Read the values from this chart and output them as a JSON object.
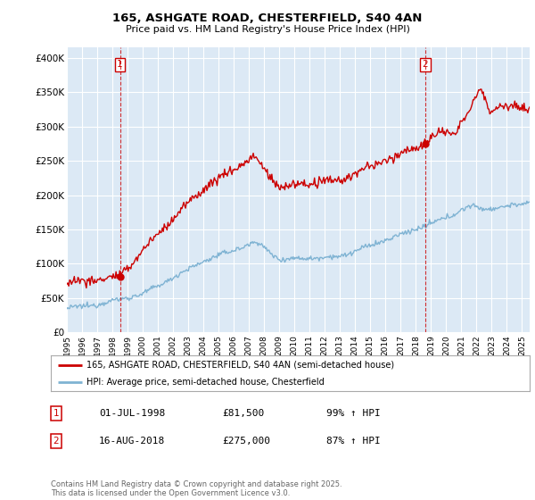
{
  "title": "165, ASHGATE ROAD, CHESTERFIELD, S40 4AN",
  "subtitle": "Price paid vs. HM Land Registry's House Price Index (HPI)",
  "ylabel_ticks": [
    "£0",
    "£50K",
    "£100K",
    "£150K",
    "£200K",
    "£250K",
    "£300K",
    "£350K",
    "£400K"
  ],
  "ytick_vals": [
    0,
    50000,
    100000,
    150000,
    200000,
    250000,
    300000,
    350000,
    400000
  ],
  "ylim": [
    0,
    415000
  ],
  "xlim_start": 1995.3,
  "xlim_end": 2025.5,
  "red_color": "#cc0000",
  "blue_color": "#7fb3d3",
  "bg_color": "#dce9f5",
  "grid_color": "#ffffff",
  "legend_label_red": "165, ASHGATE ROAD, CHESTERFIELD, S40 4AN (semi-detached house)",
  "legend_label_blue": "HPI: Average price, semi-detached house, Chesterfield",
  "purchase1_label": "1",
  "purchase1_date": "01-JUL-1998",
  "purchase1_price": "£81,500",
  "purchase1_hpi": "99% ↑ HPI",
  "purchase1_x": 1998.5,
  "purchase1_y": 81500,
  "purchase2_label": "2",
  "purchase2_date": "16-AUG-2018",
  "purchase2_price": "£275,000",
  "purchase2_hpi": "87% ↑ HPI",
  "purchase2_x": 2018.62,
  "purchase2_y": 275000,
  "footer": "Contains HM Land Registry data © Crown copyright and database right 2025.\nThis data is licensed under the Open Government Licence v3.0.",
  "xtick_years": [
    1995,
    1996,
    1997,
    1998,
    1999,
    2000,
    2001,
    2002,
    2003,
    2004,
    2005,
    2006,
    2007,
    2008,
    2009,
    2010,
    2011,
    2012,
    2013,
    2014,
    2015,
    2016,
    2017,
    2018,
    2019,
    2020,
    2021,
    2022,
    2023,
    2024,
    2025
  ]
}
